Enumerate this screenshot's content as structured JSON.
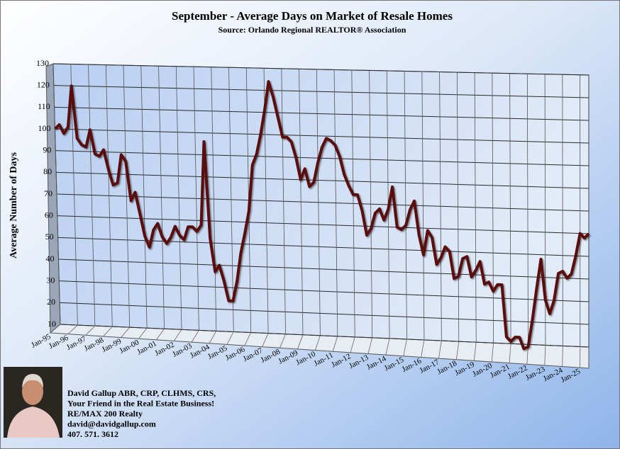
{
  "chart_data": {
    "type": "line",
    "title": "September - Average Days on Market of Resale Homes",
    "subtitle": "Source: Orlando Regional REALTOR® Association",
    "y_label": "Average  Number of Days",
    "categories": [
      "Jan-95",
      null,
      null,
      null,
      "Jan-96",
      null,
      null,
      null,
      "Jan-97",
      null,
      null,
      null,
      "Jan-98",
      null,
      null,
      null,
      "Jan-99",
      null,
      null,
      null,
      "Jan-00",
      null,
      null,
      null,
      "Jan-01",
      null,
      null,
      null,
      "Jan-02",
      null,
      null,
      null,
      "Jan-03",
      null,
      null,
      null,
      "Jan-04",
      null,
      null,
      null,
      "Jan-05",
      null,
      null,
      null,
      "Jan-06",
      null,
      null,
      null,
      "Jan-07",
      null,
      null,
      null,
      "Jan-08",
      null,
      null,
      null,
      "Jan-09",
      null,
      null,
      null,
      "Jan-10",
      null,
      null,
      null,
      "Jan-11",
      null,
      null,
      null,
      "Jan-12",
      null,
      null,
      null,
      "Jan-13",
      null,
      null,
      null,
      "Jan-14",
      null,
      null,
      null,
      "Jan-15",
      null,
      null,
      null,
      "Jan-16",
      null,
      null,
      null,
      "Jan-17",
      null,
      null,
      null,
      "Jan-18",
      null,
      null,
      null,
      "Jan-19",
      null,
      null,
      null,
      "Jan-20",
      null,
      null,
      null,
      "Jan-21",
      null,
      null,
      null,
      "Jan-22",
      null,
      null,
      null,
      "Jan-23",
      null,
      null,
      null,
      "Jan-24",
      null,
      null,
      null,
      "Jan-25",
      null,
      null
    ],
    "values": [
      100,
      102,
      98,
      101,
      120,
      96,
      93,
      92,
      100,
      89,
      88,
      91,
      82,
      75,
      76,
      89,
      86,
      68,
      72,
      62,
      52,
      47,
      55,
      58,
      52,
      49,
      52,
      57,
      53,
      51,
      57,
      57,
      55,
      58,
      96,
      52,
      37,
      40,
      33,
      24,
      24,
      33,
      46,
      55,
      65,
      86,
      91,
      100,
      111,
      124,
      117,
      108,
      99,
      99,
      97,
      90,
      80,
      85,
      77,
      79,
      88,
      95,
      99,
      98,
      96,
      91,
      83,
      78,
      74,
      74,
      67,
      56,
      59,
      66,
      68,
      63,
      68,
      78,
      60,
      59,
      61,
      68,
      72,
      57,
      48,
      59,
      56,
      44,
      47,
      52,
      50,
      38,
      39,
      47,
      48,
      39,
      42,
      46,
      36,
      37,
      33,
      36,
      36,
      13,
      11,
      13,
      13,
      8,
      9,
      21,
      35,
      48,
      30,
      24,
      30,
      42,
      43,
      40,
      42,
      50,
      60,
      58,
      60
    ],
    "color": "#5a0c0c",
    "ylim": [
      10,
      130
    ],
    "yticks": [
      10,
      20,
      30,
      40,
      50,
      60,
      70,
      80,
      90,
      100,
      110,
      120,
      130
    ],
    "grid": true
  },
  "contact": [
    "David Gallup  ABR, CRP, CLHMS, CRS,",
    "Your Friend in the Real Estate Business!",
    "RE/MAX 200 Realty",
    "david@davidgallup.com",
    "407. 571. 3612"
  ]
}
